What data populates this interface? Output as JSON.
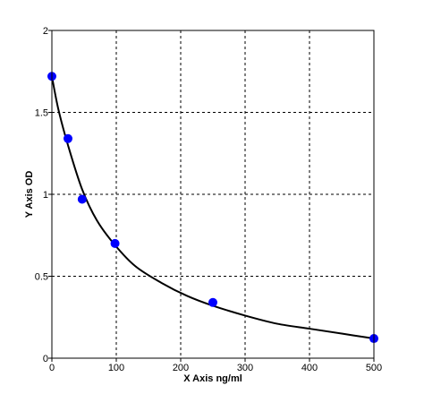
{
  "chart_data": {
    "type": "scatter",
    "title": "",
    "xlabel": "X  Axis ng/ml",
    "ylabel": "Y  Axis OD",
    "xlim": [
      0,
      500
    ],
    "ylim": [
      0,
      2
    ],
    "x_ticks": [
      0,
      100,
      200,
      300,
      400,
      500
    ],
    "y_ticks": [
      0,
      0.5,
      1,
      1.5,
      2
    ],
    "x_tick_labels": [
      "0",
      "100",
      "200",
      "300",
      "400",
      "500"
    ],
    "y_tick_labels": [
      "0",
      "0.5",
      "1",
      "1.5",
      "2"
    ],
    "grid": true,
    "legend": "none",
    "series": [
      {
        "points": [
          {
            "x": 0,
            "y": 1.72
          },
          {
            "x": 25,
            "y": 1.34
          },
          {
            "x": 47,
            "y": 0.97
          },
          {
            "x": 98,
            "y": 0.7
          },
          {
            "x": 250,
            "y": 0.34
          },
          {
            "x": 500,
            "y": 0.12
          }
        ],
        "marker_color": "#0000ff"
      }
    ],
    "fit_curve": {
      "x": [
        0,
        10,
        25,
        47,
        70,
        98,
        130,
        170,
        210,
        250,
        300,
        350,
        400,
        450,
        500
      ],
      "y": [
        1.72,
        1.52,
        1.3,
        1.03,
        0.84,
        0.69,
        0.56,
        0.46,
        0.38,
        0.32,
        0.26,
        0.21,
        0.18,
        0.15,
        0.12
      ],
      "color": "#000000"
    }
  }
}
